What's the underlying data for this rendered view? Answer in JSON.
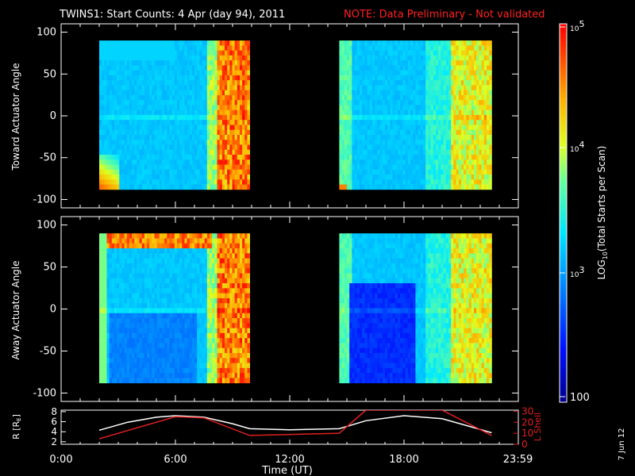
{
  "title": {
    "main": "TWINS1: Start Counts:  4 Apr (day  94), 2011",
    "note": "NOTE: Data Preliminary - Not validated",
    "note_color": "#ff2020"
  },
  "chart_data": [
    {
      "type": "heatmap",
      "name": "panel-toward",
      "ylabel": "Toward Actuator Angle",
      "ylim": [
        -110,
        110
      ],
      "yticks": [
        100,
        50,
        0,
        -50,
        -100
      ],
      "xlim": [
        0,
        24
      ],
      "blocks": [
        {
          "t_start": 2.0,
          "t_end": 9.9,
          "angle_range": [
            -88,
            90
          ]
        },
        {
          "t_start": 14.6,
          "t_end": 22.6,
          "angle_range": [
            -88,
            90
          ]
        }
      ]
    },
    {
      "type": "heatmap",
      "name": "panel-away",
      "ylabel": "Away Actuator Angle",
      "ylim": [
        -110,
        110
      ],
      "yticks": [
        100,
        50,
        0,
        -50,
        -100
      ],
      "xlim": [
        0,
        24
      ],
      "blocks": [
        {
          "t_start": 2.0,
          "t_end": 9.9,
          "angle_range": [
            -88,
            90
          ]
        },
        {
          "t_start": 14.6,
          "t_end": 22.6,
          "angle_range": [
            -88,
            90
          ]
        }
      ]
    },
    {
      "type": "line",
      "name": "orbit-panel",
      "ylabel_left": "R [R",
      "ylabel_left_sub": "E",
      "ylabel_left_end": "]",
      "ylabel_right": "L Shell",
      "yticks_left": [
        8,
        6,
        4,
        2
      ],
      "yticks_right": [
        30,
        20,
        10,
        0
      ],
      "xlabel": "Time (UT)",
      "xticks": [
        "0:00",
        "6:00",
        "12:00",
        "18:00",
        "23:59"
      ],
      "xtick_values": [
        0,
        6,
        12,
        18,
        23.98
      ],
      "series": [
        {
          "color": "#ffffff",
          "axis": "left",
          "x": [
            2.0,
            3.5,
            5.0,
            6.0,
            7.5,
            9.0,
            9.9,
            12.0,
            14.6,
            16.0,
            18.0,
            20.0,
            21.5,
            22.6
          ],
          "y": [
            4.3,
            5.9,
            6.9,
            7.2,
            6.9,
            5.6,
            4.6,
            4.4,
            4.6,
            6.2,
            7.2,
            6.6,
            5.0,
            3.8
          ]
        },
        {
          "color": "#e02020",
          "axis": "right",
          "x": [
            2.0,
            6.0,
            7.5,
            9.9,
            14.6,
            16.0,
            20.0,
            22.6
          ],
          "y": [
            5,
            25,
            24,
            8,
            10,
            31,
            31,
            8
          ]
        }
      ]
    }
  ],
  "colorbar": {
    "label_prefix": "LOG",
    "label_sub": "10",
    "label_suffix": "(Total Starts per Scan)",
    "ticks": [
      {
        "base": "10",
        "exp": "5"
      },
      {
        "base": "10",
        "exp": "4"
      },
      {
        "base": "10",
        "exp": "3"
      },
      {
        "base": "100",
        "exp": ""
      }
    ]
  },
  "date_stamp": "7 Jun 12"
}
